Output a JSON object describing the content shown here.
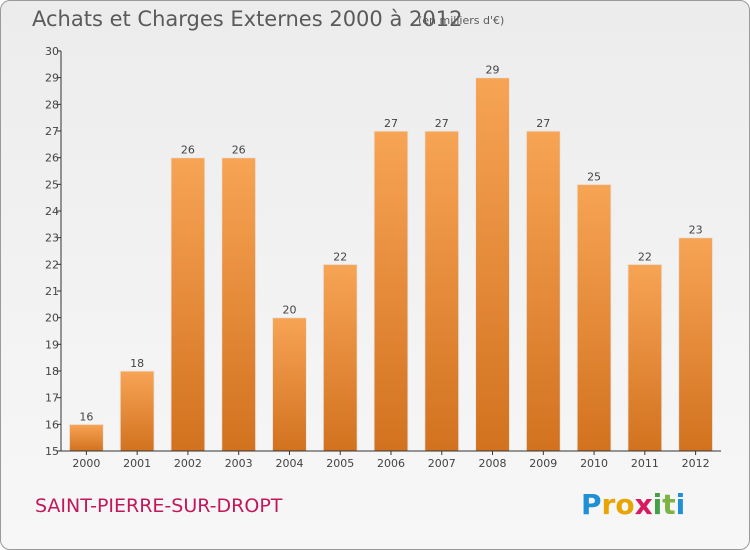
{
  "header": {
    "title": "Achats et Charges Externes 2000 à 2012",
    "subtitle": "(en milliers d'€)"
  },
  "footer": {
    "commune": "SAINT-PIERRE-SUR-DROPT",
    "logo_letters": [
      "P",
      "r",
      "o",
      "x",
      "i",
      "t",
      "i"
    ],
    "logo_colors": [
      "#1f8fd6",
      "#e8a400",
      "#e8a400",
      "#d81b60",
      "#43a047",
      "#7cb342",
      "#1f8fd6"
    ]
  },
  "colors": {
    "bar_top": "#f7a455",
    "bar_bottom": "#d2721f",
    "axis": "#333333",
    "text": "#444444"
  },
  "chart_data": {
    "type": "bar",
    "categories": [
      "2000",
      "2001",
      "2002",
      "2003",
      "2004",
      "2005",
      "2006",
      "2007",
      "2008",
      "2009",
      "2010",
      "2011",
      "2012"
    ],
    "values": [
      16,
      18,
      26,
      26,
      20,
      22,
      27,
      27,
      29,
      27,
      25,
      22,
      23
    ],
    "ylim": [
      15,
      30
    ],
    "yticks": [
      "15",
      "16",
      "17",
      "18",
      "19",
      "20",
      "21",
      "22",
      "23",
      "24",
      "25",
      "26",
      "27",
      "28",
      "29",
      "30"
    ],
    "title": "Achats et Charges Externes 2000 à 2012",
    "xlabel": "",
    "ylabel": "",
    "grid": false,
    "data_labels": true
  }
}
